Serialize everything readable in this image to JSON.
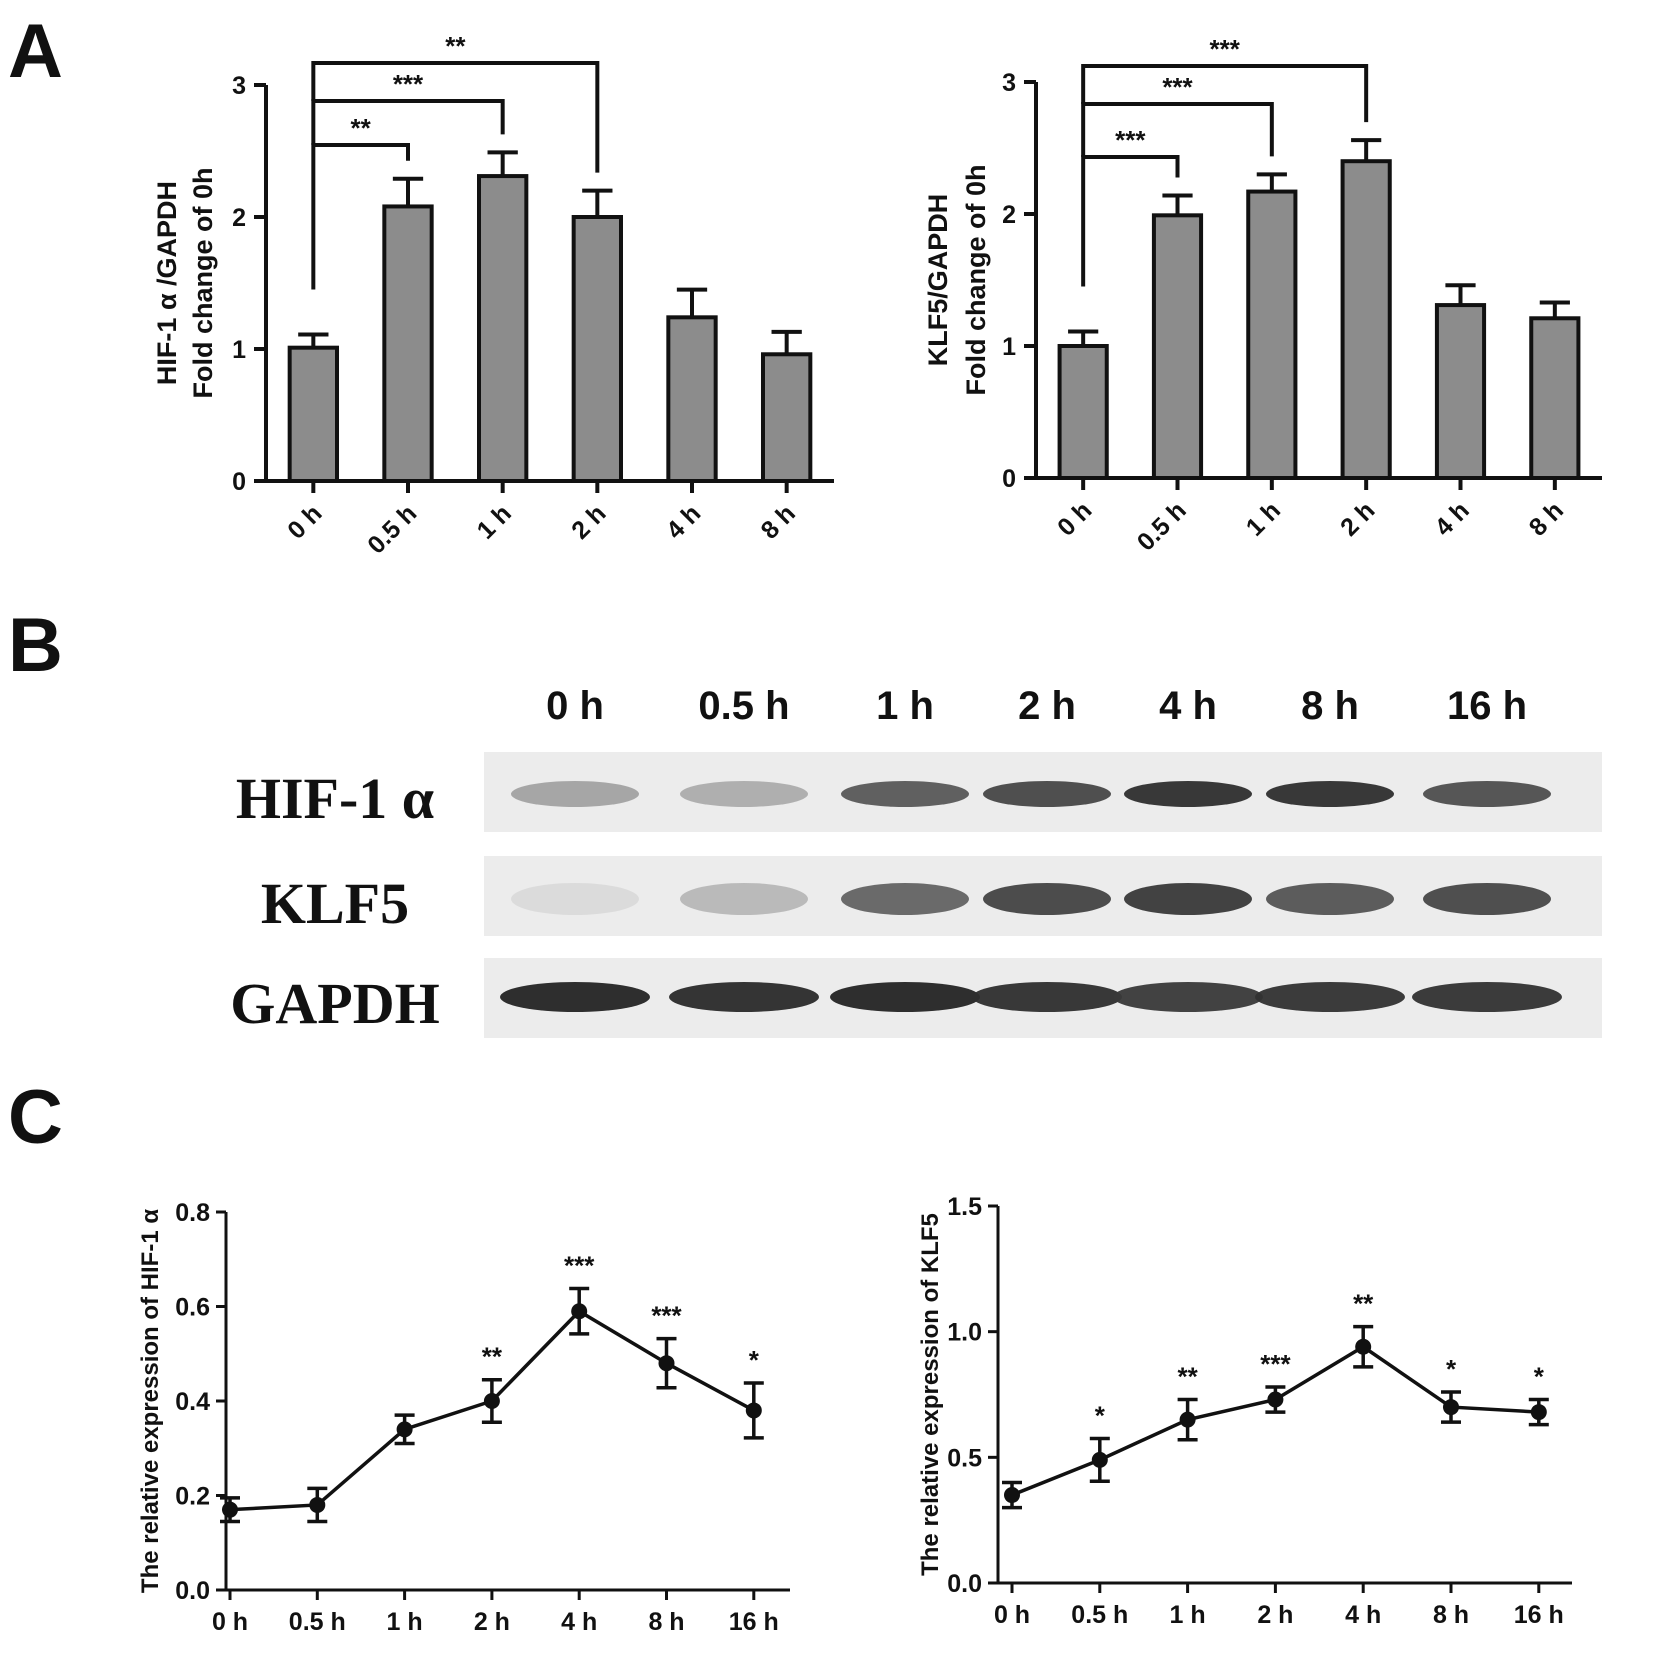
{
  "figure": {
    "panels": [
      "A",
      "B",
      "C"
    ]
  },
  "chart_data": [
    {
      "id": "A-left",
      "type": "bar",
      "categories": [
        "0 h",
        "0.5 h",
        "1 h",
        "2 h",
        "4 h",
        "8 h"
      ],
      "values": [
        1.01,
        2.08,
        2.31,
        2.0,
        1.24,
        0.96
      ],
      "errors": [
        0.1,
        0.21,
        0.18,
        0.2,
        0.21,
        0.17
      ],
      "ylabel_line1": "HIF-1 α /GAPDH",
      "ylabel_line2": "Fold change of 0h",
      "ylim": [
        0,
        3
      ],
      "yticks": [
        "0",
        "1",
        "2",
        "3"
      ],
      "bar_color": "#8c8c8c",
      "significance": [
        {
          "from": 0,
          "to": 1,
          "label": "**"
        },
        {
          "from": 0,
          "to": 2,
          "label": "***"
        },
        {
          "from": 0,
          "to": 3,
          "label": "**"
        }
      ]
    },
    {
      "id": "A-right",
      "type": "bar",
      "categories": [
        "0 h",
        "0.5 h",
        "1 h",
        "2 h",
        "4 h",
        "8 h"
      ],
      "values": [
        1.0,
        1.99,
        2.17,
        2.4,
        1.31,
        1.21
      ],
      "errors": [
        0.11,
        0.15,
        0.13,
        0.16,
        0.15,
        0.12
      ],
      "ylabel_line1": "KLF5/GAPDH",
      "ylabel_line2": "Fold change of 0h",
      "ylim": [
        0,
        3
      ],
      "yticks": [
        "0",
        "1",
        "2",
        "3"
      ],
      "bar_color": "#8c8c8c",
      "significance": [
        {
          "from": 0,
          "to": 1,
          "label": "***"
        },
        {
          "from": 0,
          "to": 2,
          "label": "***"
        },
        {
          "from": 0,
          "to": 3,
          "label": "***"
        }
      ]
    },
    {
      "id": "C-left",
      "type": "line",
      "categories": [
        "0 h",
        "0.5 h",
        "1 h",
        "2 h",
        "4 h",
        "8 h",
        "16 h"
      ],
      "values": [
        0.17,
        0.18,
        0.34,
        0.4,
        0.59,
        0.48,
        0.38
      ],
      "errors": [
        0.025,
        0.035,
        0.03,
        0.045,
        0.048,
        0.052,
        0.058
      ],
      "sig_labels": [
        "",
        "",
        "",
        "**",
        "***",
        "***",
        "*"
      ],
      "ylabel": "The relative expression of HIF-1 α",
      "ylim": [
        0,
        0.8
      ],
      "yticks": [
        "0.0",
        "0.2",
        "0.4",
        "0.6",
        "0.8"
      ]
    },
    {
      "id": "C-right",
      "type": "line",
      "categories": [
        "0 h",
        "0.5 h",
        "1 h",
        "2 h",
        "4 h",
        "8 h",
        "16 h"
      ],
      "values": [
        0.35,
        0.49,
        0.65,
        0.73,
        0.94,
        0.7,
        0.68
      ],
      "errors": [
        0.05,
        0.085,
        0.08,
        0.05,
        0.08,
        0.06,
        0.05
      ],
      "sig_labels": [
        "",
        "*",
        "**",
        "***",
        "**",
        "*",
        "*"
      ],
      "ylabel": "The relative expression of KLF5",
      "ylim": [
        0,
        1.5
      ],
      "yticks": [
        "0.0",
        "0.5",
        "1.0",
        "1.5"
      ]
    }
  ],
  "blot": {
    "lanes": [
      "0 h",
      "0.5 h",
      "1 h",
      "2 h",
      "4 h",
      "8 h",
      "16 h"
    ],
    "rows": [
      {
        "protein": "HIF-1 α",
        "intensity": [
          0.35,
          0.3,
          0.7,
          0.78,
          0.9,
          0.9,
          0.75
        ]
      },
      {
        "protein": "KLF5",
        "intensity": [
          0.08,
          0.25,
          0.65,
          0.8,
          0.85,
          0.72,
          0.78
        ]
      },
      {
        "protein": "GAPDH",
        "intensity": [
          0.95,
          0.92,
          0.95,
          0.9,
          0.85,
          0.88,
          0.88
        ]
      }
    ]
  }
}
